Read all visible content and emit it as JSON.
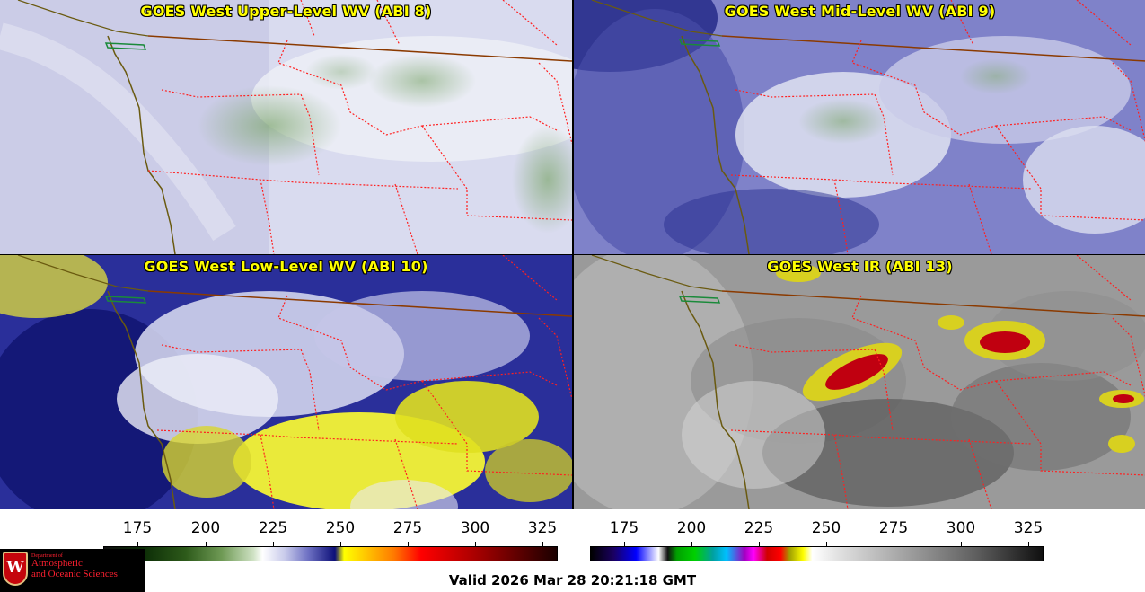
{
  "panels": [
    {
      "title": "GOES West Upper-Level WV (ABI 8)"
    },
    {
      "title": "GOES West Mid-Level WV (ABI 9)"
    },
    {
      "title": "GOES West Low-Level WV (ABI 10)"
    },
    {
      "title": "GOES West IR (ABI 13)"
    }
  ],
  "colorbars": {
    "wv_ticks": [
      "175",
      "200",
      "225",
      "250",
      "275",
      "300",
      "325"
    ],
    "ir_ticks": [
      "175",
      "200",
      "225",
      "250",
      "275",
      "300",
      "325"
    ]
  },
  "footer": {
    "valid_text": "Valid 2026 Mar 28 20:21:18 GMT"
  },
  "logo": {
    "line1": "Department of",
    "line2": "Atmospheric",
    "line3": "and Oceanic Sciences"
  },
  "colors": {
    "title_text": "#ffff00",
    "border_lines": "#ff2020",
    "coastline": "#7a5a10"
  }
}
